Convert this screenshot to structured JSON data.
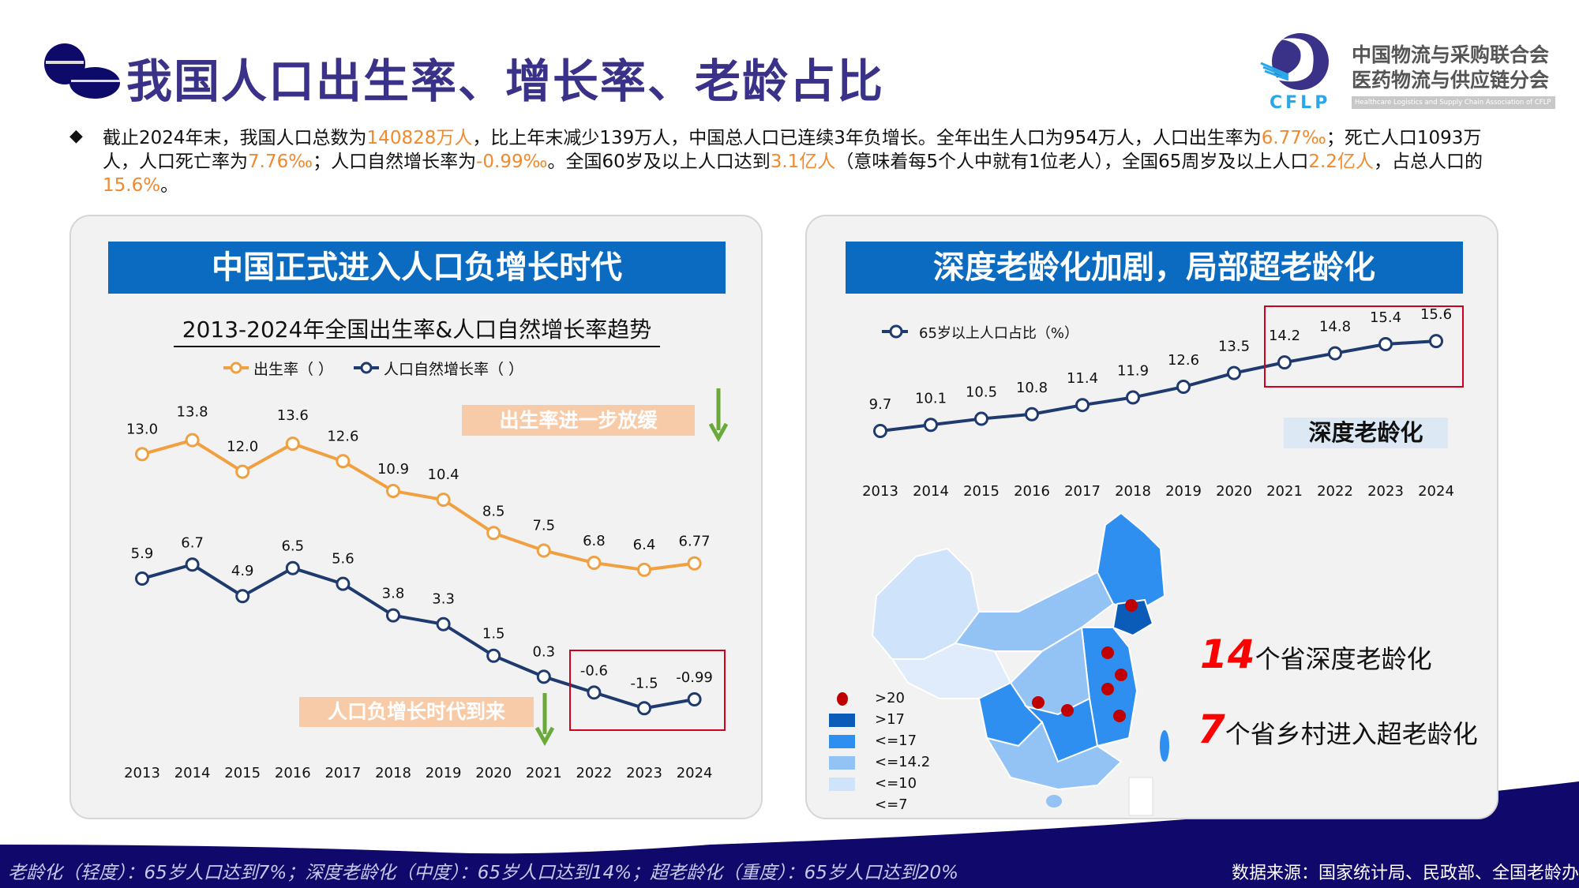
{
  "header": {
    "title": "我国人口出生率、增长率、老龄占比",
    "org_line1": "中国物流与采购联合会",
    "org_line2": "医药物流与供应链分会",
    "org_en": "Healthcare Logistics and Supply Chain Association of CFLP",
    "logo_text": "CFLP"
  },
  "intro": {
    "p1": "截止2024年末，我国人口总数为",
    "v1": "140828万人",
    "p2": "，比上年末减少139万人，中国总人口已连续3年负增长。全年出生人口为954万人，人口出生率为",
    "v2": "6.77‰",
    "p3": "；死亡人口1093万人，人口死亡率为",
    "v3": "7.76‰",
    "p4": "；人口自然增长率为",
    "v4": "-0.99‰",
    "p5": "。全国60岁及以上人口达到",
    "v5": "3.1亿人",
    "p6": "（意味着每5个人中就有1位老人），全国65周岁及以上人口",
    "v6": "2.2亿人",
    "p7": "，占总人口的",
    "v7": "15.6%",
    "p8": "。",
    "bullet": "◆"
  },
  "left_panel": {
    "banner": "中国正式进入人口负增长时代",
    "tag_birth": "出生率进一步放缓",
    "tag_negative": "人口负增长时代到来"
  },
  "right_panel": {
    "banner": "深度老龄化加剧，局部超老龄化",
    "tag_deep": "深度老龄化",
    "note1_num": "14",
    "note1_text": "个省深度老龄化",
    "note2_num": "7",
    "note2_text": "个省乡村进入超老龄化",
    "map_legend": [
      {
        "label": ">20",
        "color": "#c00000",
        "shape": "dot"
      },
      {
        "label": ">17",
        "color": "#0a5cb8"
      },
      {
        "label": "<=17",
        "color": "#2e8ff0"
      },
      {
        "label": "<=14.2",
        "color": "#93c2f5"
      },
      {
        "label": "<=10",
        "color": "#cfe3fa"
      },
      {
        "label": "<=7",
        "color": "none"
      }
    ]
  },
  "footer": {
    "definition": "老龄化（轻度）：65岁人口达到7%；深度老龄化（中度）：65岁人口达到14%；超老龄化（重度）：65岁人口达到20%",
    "source": "数据来源：国家统计局、民政部、全国老龄办"
  },
  "colors": {
    "title": "#3a3189",
    "banner": "#0b6bc0",
    "birth": "#f0a040",
    "natural": "#1f3a6e",
    "highlight": "#f08a2c",
    "box": "#d0021b",
    "footer": "#10086b"
  },
  "chart_data": [
    {
      "type": "line",
      "title": "2013-2024年全国出生率&人口自然增长率趋势",
      "categories": [
        "2013",
        "2014",
        "2015",
        "2016",
        "2017",
        "2018",
        "2019",
        "2020",
        "2021",
        "2022",
        "2023",
        "2024"
      ],
      "series": [
        {
          "name": "出生率（ ）",
          "values": [
            13.0,
            13.8,
            12.0,
            13.6,
            12.6,
            10.9,
            10.4,
            8.5,
            7.5,
            6.8,
            6.4,
            6.77
          ],
          "labels": [
            "13.0",
            "13.8",
            "12.0",
            "13.6",
            "12.6",
            "10.9",
            "10.4",
            "8.5",
            "7.5",
            "6.8",
            "6.4",
            "6.77"
          ]
        },
        {
          "name": "人口自然增长率（ ）",
          "values": [
            5.9,
            6.7,
            4.9,
            6.5,
            5.6,
            3.8,
            3.3,
            1.5,
            0.3,
            -0.6,
            -1.5,
            -0.99
          ],
          "labels": [
            "5.9",
            "6.7",
            "4.9",
            "6.5",
            "5.6",
            "3.8",
            "3.3",
            "1.5",
            "0.3",
            "-0.6",
            "-1.5",
            "-0.99"
          ]
        }
      ],
      "highlight_range": [
        "2022",
        "2024"
      ],
      "grid": false,
      "legend": "top"
    },
    {
      "type": "line",
      "categories": [
        "2013",
        "2014",
        "2015",
        "2016",
        "2017",
        "2018",
        "2019",
        "2020",
        "2021",
        "2022",
        "2023",
        "2024"
      ],
      "series": [
        {
          "name": "65岁以上人口占比（%）",
          "values": [
            9.7,
            10.1,
            10.5,
            10.8,
            11.4,
            11.9,
            12.6,
            13.5,
            14.2,
            14.8,
            15.4,
            15.6
          ],
          "labels": [
            "9.7",
            "10.1",
            "10.5",
            "10.8",
            "11.4",
            "11.9",
            "12.6",
            "13.5",
            "14.2",
            "14.8",
            "15.4",
            "15.6"
          ]
        }
      ],
      "highlight_range": [
        "2021",
        "2024"
      ],
      "grid": false,
      "legend": "top-left"
    }
  ]
}
